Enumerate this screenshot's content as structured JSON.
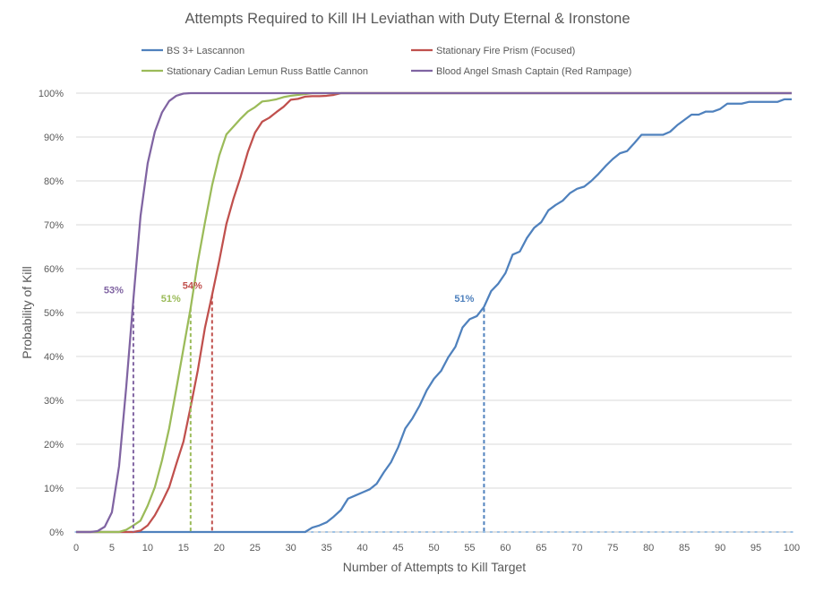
{
  "chart_data": {
    "type": "line",
    "title": "Attempts Required to Kill IH Leviathan with Duty Eternal & Ironstone",
    "xlabel": "Number of Attempts to Kill Target",
    "ylabel": "Probability of Kill",
    "xlim": [
      0,
      100
    ],
    "ylim": [
      0,
      100
    ],
    "x_ticks": [
      "0",
      "5",
      "10",
      "15",
      "20",
      "25",
      "30",
      "35",
      "40",
      "45",
      "50",
      "55",
      "60",
      "65",
      "70",
      "75",
      "80",
      "85",
      "90",
      "95",
      "100"
    ],
    "y_ticks": [
      "0%",
      "10%",
      "20%",
      "30%",
      "40%",
      "50%",
      "60%",
      "70%",
      "80%",
      "90%",
      "100%"
    ],
    "grid": "horizontal",
    "legend_position": "top",
    "series": [
      {
        "name": "BS 3+ Lascannon",
        "color": "#4f81bd",
        "points": [
          [
            0,
            0
          ],
          [
            31,
            0
          ],
          [
            32,
            0
          ],
          [
            33,
            1
          ],
          [
            34,
            1.5
          ],
          [
            35,
            2.2
          ],
          [
            36,
            3.5
          ],
          [
            37,
            5
          ],
          [
            38,
            7.6
          ],
          [
            39,
            8.3
          ],
          [
            40,
            9
          ],
          [
            41,
            9.7
          ],
          [
            42,
            11
          ],
          [
            43,
            13.6
          ],
          [
            44,
            15.9
          ],
          [
            45,
            19.3
          ],
          [
            46,
            23.6
          ],
          [
            47,
            25.9
          ],
          [
            48,
            28.8
          ],
          [
            49,
            32.3
          ],
          [
            50,
            34.9
          ],
          [
            51,
            36.7
          ],
          [
            52,
            39.8
          ],
          [
            53,
            42.2
          ],
          [
            54,
            46.6
          ],
          [
            55,
            48.5
          ],
          [
            56,
            49.2
          ],
          [
            57,
            51.3
          ],
          [
            58,
            54.9
          ],
          [
            59,
            56.6
          ],
          [
            60,
            59
          ],
          [
            61,
            63.2
          ],
          [
            62,
            63.9
          ],
          [
            63,
            67
          ],
          [
            64,
            69.3
          ],
          [
            65,
            70.6
          ],
          [
            66,
            73.3
          ],
          [
            67,
            74.5
          ],
          [
            68,
            75.5
          ],
          [
            69,
            77.2
          ],
          [
            70,
            78.2
          ],
          [
            71,
            78.7
          ],
          [
            72,
            80
          ],
          [
            73,
            81.6
          ],
          [
            74,
            83.4
          ],
          [
            75,
            85
          ],
          [
            76,
            86.3
          ],
          [
            77,
            86.8
          ],
          [
            78,
            88.6
          ],
          [
            79,
            90.5
          ],
          [
            80,
            90.5
          ],
          [
            81,
            90.5
          ],
          [
            82,
            90.5
          ],
          [
            83,
            91.2
          ],
          [
            84,
            92.7
          ],
          [
            85,
            93.9
          ],
          [
            86,
            95.1
          ],
          [
            87,
            95.1
          ],
          [
            88,
            95.8
          ],
          [
            89,
            95.8
          ],
          [
            90,
            96.4
          ],
          [
            91,
            97.6
          ],
          [
            92,
            97.6
          ],
          [
            93,
            97.6
          ],
          [
            94,
            98
          ],
          [
            95,
            98
          ],
          [
            96,
            98
          ],
          [
            97,
            98
          ],
          [
            98,
            98
          ],
          [
            99,
            98.6
          ],
          [
            100,
            98.6
          ]
        ]
      },
      {
        "name": "Stationary Fire Prism (Focused)",
        "color": "#c0504d",
        "points": [
          [
            0,
            0
          ],
          [
            8,
            0
          ],
          [
            9,
            0.3
          ],
          [
            10,
            1.5
          ],
          [
            11,
            3.8
          ],
          [
            12,
            6.8
          ],
          [
            13,
            10.2
          ],
          [
            14,
            15.5
          ],
          [
            15,
            20.6
          ],
          [
            16,
            28.5
          ],
          [
            17,
            36.8
          ],
          [
            18,
            46.5
          ],
          [
            19,
            54
          ],
          [
            20,
            61.8
          ],
          [
            21,
            70.2
          ],
          [
            22,
            76
          ],
          [
            23,
            81
          ],
          [
            24,
            86.6
          ],
          [
            25,
            91
          ],
          [
            26,
            93.5
          ],
          [
            27,
            94.4
          ],
          [
            28,
            95.7
          ],
          [
            29,
            96.9
          ],
          [
            30,
            98.5
          ],
          [
            31,
            98.7
          ],
          [
            32,
            99.2
          ],
          [
            33,
            99.3
          ],
          [
            34,
            99.3
          ],
          [
            35,
            99.4
          ],
          [
            36,
            99.6
          ],
          [
            37,
            100
          ],
          [
            100,
            100
          ]
        ]
      },
      {
        "name": "Stationary Cadian Lemun Russ Battle Cannon",
        "color": "#9bbb59",
        "points": [
          [
            0,
            0
          ],
          [
            6,
            0
          ],
          [
            7,
            0.5
          ],
          [
            8,
            1.5
          ],
          [
            9,
            2.6
          ],
          [
            10,
            6
          ],
          [
            11,
            10.2
          ],
          [
            12,
            16.3
          ],
          [
            13,
            23.6
          ],
          [
            14,
            32.6
          ],
          [
            15,
            41.8
          ],
          [
            16,
            51
          ],
          [
            17,
            61.5
          ],
          [
            18,
            70.5
          ],
          [
            19,
            79
          ],
          [
            20,
            85.8
          ],
          [
            21,
            90.6
          ],
          [
            22,
            92.4
          ],
          [
            23,
            94.2
          ],
          [
            24,
            95.8
          ],
          [
            25,
            96.8
          ],
          [
            26,
            98.1
          ],
          [
            27,
            98.3
          ],
          [
            28,
            98.6
          ],
          [
            29,
            99.1
          ],
          [
            30,
            99.4
          ],
          [
            31,
            99.6
          ],
          [
            32,
            99.8
          ],
          [
            33,
            100
          ],
          [
            100,
            100
          ]
        ]
      },
      {
        "name": "Blood Angel Smash Captain (Red Rampage)",
        "color": "#8064a2",
        "points": [
          [
            0,
            0
          ],
          [
            2,
            0
          ],
          [
            3,
            0.2
          ],
          [
            4,
            1.2
          ],
          [
            5,
            4.5
          ],
          [
            6,
            15
          ],
          [
            7,
            33
          ],
          [
            8,
            53
          ],
          [
            9,
            72
          ],
          [
            10,
            84
          ],
          [
            11,
            91.2
          ],
          [
            12,
            95.6
          ],
          [
            13,
            98.2
          ],
          [
            14,
            99.4
          ],
          [
            15,
            99.9
          ],
          [
            16,
            100
          ],
          [
            100,
            100
          ]
        ]
      }
    ],
    "markers": [
      {
        "series": 3,
        "x": 8,
        "y": 53,
        "label": "53%",
        "color": "#8064a2"
      },
      {
        "series": 2,
        "x": 16,
        "y": 51,
        "label": "51%",
        "color": "#9bbb59"
      },
      {
        "series": 1,
        "x": 19,
        "y": 54,
        "label": "54%",
        "color": "#c0504d"
      },
      {
        "series": 0,
        "x": 57,
        "y": 51,
        "label": "51%",
        "color": "#4f81bd"
      }
    ]
  }
}
